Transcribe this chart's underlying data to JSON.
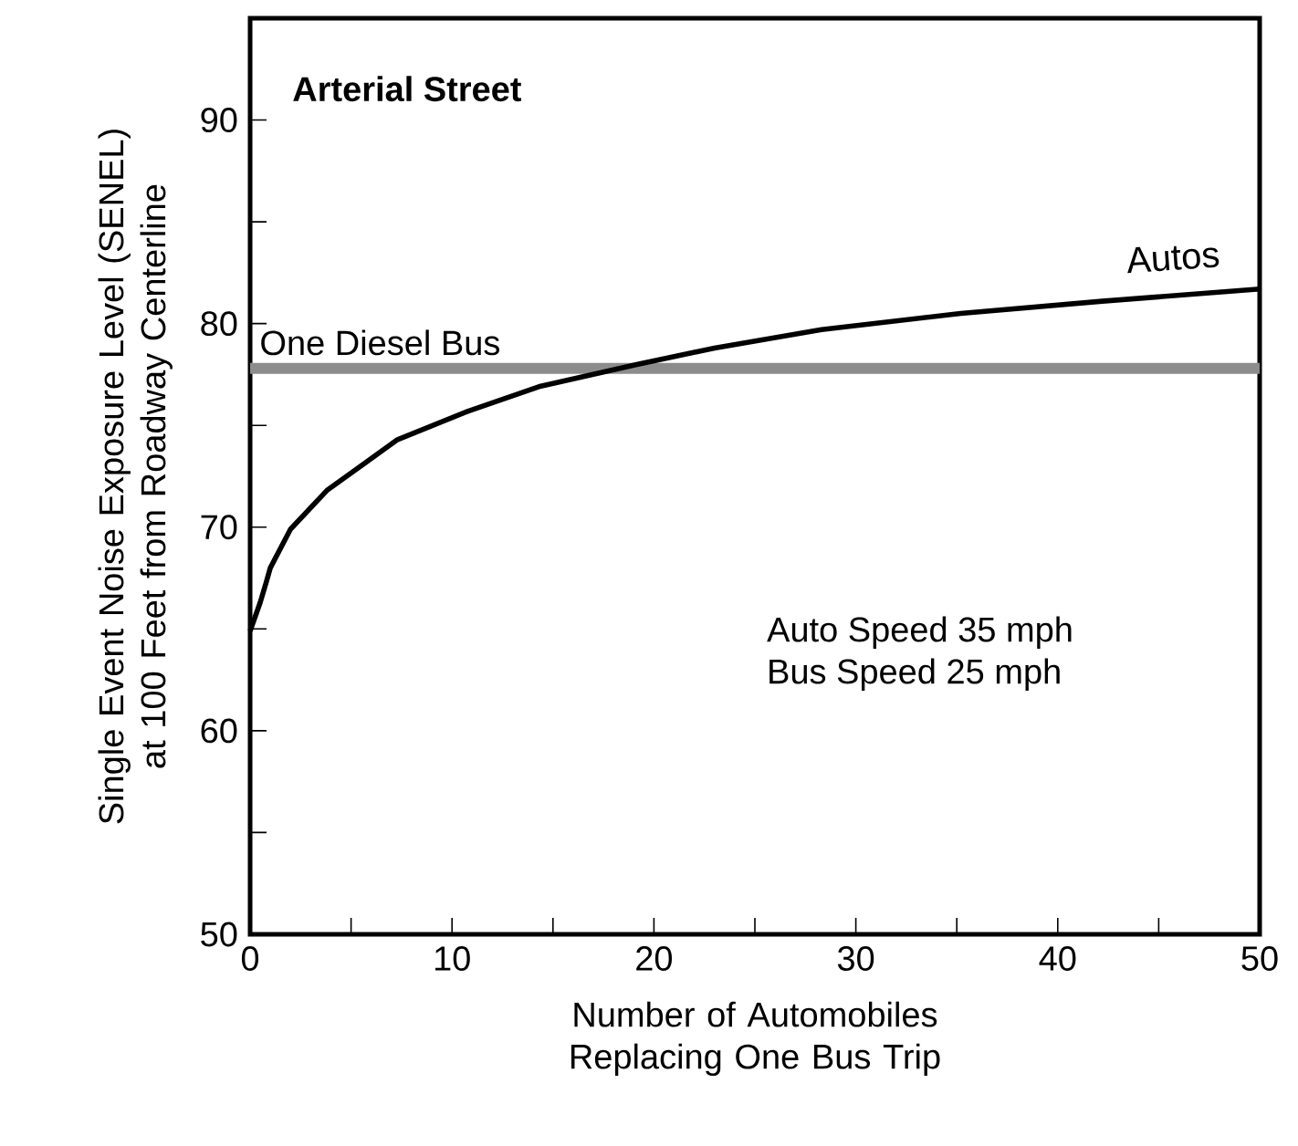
{
  "chart_data": {
    "type": "line",
    "title": "Arterial Street",
    "xlabel": "Number of Automobiles Replacing One Bus Trip",
    "ylabel": "Single Event Noise Exposure Level (SENEL) at 100 Feet from Roadway Centerline",
    "x": [
      0,
      0.5,
      0.8,
      1.0,
      2.0,
      3.8,
      7.3,
      10.8,
      14.3,
      19.2,
      23.0,
      28.3,
      35.2,
      42.2,
      50
    ],
    "series": [
      {
        "name": "Autos",
        "color": "#000000",
        "values": [
          64.9,
          66.3,
          67.3,
          68.0,
          69.9,
          71.8,
          74.3,
          75.7,
          76.9,
          78.0,
          78.8,
          79.7,
          80.5,
          81.1,
          81.7
        ]
      }
    ],
    "xlim": [
      0,
      50
    ],
    "ylim": [
      50,
      95
    ],
    "xticks": [
      0,
      {
        "value": 5,
        "label": null
      },
      10,
      {
        "value": 15,
        "label": null
      },
      20,
      {
        "value": 25,
        "label": null
      },
      30,
      {
        "value": 35,
        "label": null
      },
      40,
      {
        "value": 45,
        "label": null
      },
      50
    ],
    "yticks": [
      50,
      {
        "value": 55,
        "label": null
      },
      60,
      {
        "value": 65,
        "label": null
      },
      70,
      {
        "value": 75,
        "label": null
      },
      80,
      {
        "value": 85,
        "label": null
      },
      90
    ],
    "ref_lines": [
      {
        "axis": "y",
        "value": 77.8,
        "label": "One Diesel Bus",
        "color": "#8c8c8c"
      }
    ],
    "annotations": [
      "Auto Speed 35 mph",
      "Bus Speed 25 mph"
    ],
    "grid": false,
    "legend": false,
    "marker": "none",
    "line_style": "solid"
  }
}
